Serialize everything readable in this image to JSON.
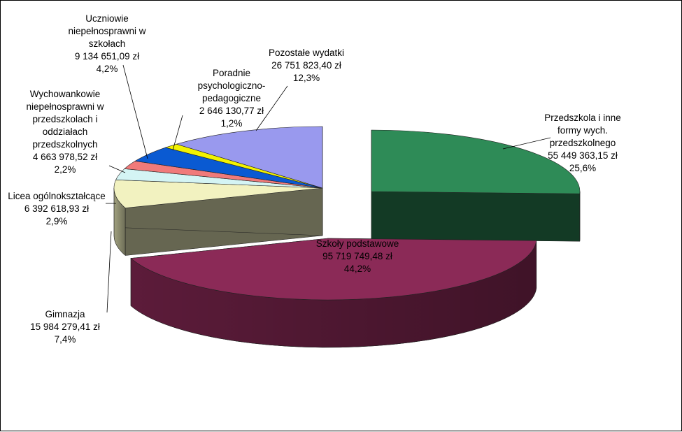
{
  "chart_data": {
    "type": "pie",
    "style": "3d-exploded",
    "title": "",
    "legend": "none",
    "slices": [
      {
        "name": "Przedszkola i inne formy wych. przedszkolnego",
        "value": 55449363.15,
        "value_label": "55 449 363,15 zł",
        "percent": 25.6,
        "percent_label": "25,6%",
        "color": "#2E8B57",
        "label_lines": [
          "Przedszkola  i inne",
          "formy wych.",
          "przedszkolnego",
          "55 449 363,15 zł",
          "25,6%"
        ]
      },
      {
        "name": "Szkoły podstawowe",
        "value": 95719749.48,
        "value_label": "95 719 749,48 zł",
        "percent": 44.2,
        "percent_label": "44,2%",
        "color": "#8B2A57",
        "label_lines": [
          "Szkoły podstawowe",
          "95 719 749,48 zł",
          "44,2%"
        ]
      },
      {
        "name": "Gimnazja",
        "value": 15984279.41,
        "value_label": "15 984 279,41 zł",
        "percent": 7.4,
        "percent_label": "7,4%",
        "color": "#F2F2C0",
        "label_lines": [
          "Gimnazja",
          "15 984 279,41 zł",
          "7,4%"
        ]
      },
      {
        "name": "Licea ogólnokształcące",
        "value": 6392618.93,
        "value_label": "6 392 618,93 zł",
        "percent": 2.9,
        "percent_label": "2,9%",
        "color": "#D4F4F4",
        "label_lines": [
          "Licea ogólnokształcące",
          "6 392 618,93 zł",
          "2,9%"
        ]
      },
      {
        "name": "Wychowankowie niepełnosprawni w przedszkolach i oddziałach przedszkolnych",
        "value": 4663978.52,
        "value_label": "4 663 978,52 zł",
        "percent": 2.2,
        "percent_label": "2,2%",
        "color": "#F07A7A",
        "label_lines": [
          "Wychowankowie",
          "niepełnosprawni  w",
          "przedszkolach  i",
          "oddziałach",
          "przedszkolnych",
          "4 663 978,52 zł",
          "2,2%"
        ]
      },
      {
        "name": "Uczniowie niepełnosprawni w szkołach",
        "value": 9134651.09,
        "value_label": "9 134 651,09 zł",
        "percent": 4.2,
        "percent_label": "4,2%",
        "color": "#0A5AD2",
        "label_lines": [
          "Uczniowie",
          "niepełnosprawni  w",
          "szkołach",
          "9 134 651,09 zł",
          "4,2%"
        ]
      },
      {
        "name": "Poradnie psychologiczno-pedagogiczne",
        "value": 2646130.77,
        "value_label": "2 646 130,77 zł",
        "percent": 1.2,
        "percent_label": "1,2%",
        "color": "#F2F200",
        "label_lines": [
          "Poradnie",
          "psychologiczno-",
          "pedagogiczne",
          "2 646 130,77 zł",
          "1,2%"
        ]
      },
      {
        "name": "Pozostałe wydatki",
        "value": 26751823.4,
        "value_label": "26 751 823,40 zł",
        "percent": 12.3,
        "percent_label": "12,3%",
        "color": "#9999EE",
        "label_lines": [
          "Pozostałe  wydatki",
          "26 751 823,40 zł",
          "12,3%"
        ]
      }
    ]
  }
}
